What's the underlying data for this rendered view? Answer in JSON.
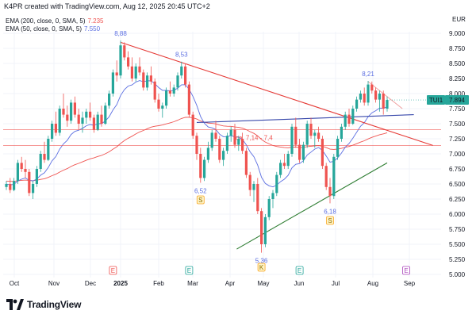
{
  "header": {
    "credit": "K4PR created with TradingView.com, Aug 12, 2025 20:45 UTC+2"
  },
  "indicators": [
    {
      "label": "EMA (200, close, 0, SMA, 5)",
      "value": "7.235",
      "color": "#ef5350"
    },
    {
      "label": "EMA (50, close, 0, SMA, 5)",
      "value": "7.550",
      "color": "#5b6ee1"
    }
  ],
  "footer": {
    "brand": "TradingView",
    "logo_icon": "tradingview-logo-icon"
  },
  "chart_data": {
    "type": "candlestick",
    "currency": "EUR",
    "symbol_tag": "TUI1",
    "last_price": "7.894",
    "ylim": [
      5.0,
      9.0
    ],
    "y_ticks": [
      "9.000",
      "8.750",
      "8.500",
      "8.250",
      "8.000",
      "7.750",
      "7.500",
      "7.250",
      "7.000",
      "6.750",
      "6.500",
      "6.250",
      "6.000",
      "5.750",
      "5.500",
      "5.250",
      "5.000"
    ],
    "x_ticks": [
      "Oct",
      "Nov",
      "Dec",
      "2025",
      "Feb",
      "Mar",
      "Apr",
      "May",
      "Jun",
      "Jul",
      "Aug",
      "Sep"
    ],
    "colors": {
      "up": "#26a69a",
      "down": "#ef5350",
      "ema200": "#ef5350",
      "ema50": "#5b6ee1",
      "resistance": "#e53935",
      "support": "#2e7d32",
      "trend": "#3949ab",
      "hline": "#ef5350",
      "price_tag": "#26a69a"
    },
    "candles": [
      [
        0,
        6.45,
        6.55,
        6.4,
        6.5
      ],
      [
        1,
        6.5,
        6.6,
        6.35,
        6.4
      ],
      [
        2,
        6.4,
        6.6,
        6.38,
        6.55
      ],
      [
        3,
        6.55,
        6.9,
        6.5,
        6.85
      ],
      [
        4,
        6.85,
        6.95,
        6.7,
        6.75
      ],
      [
        5,
        6.75,
        6.9,
        6.6,
        6.7
      ],
      [
        6,
        6.7,
        6.75,
        6.3,
        6.35
      ],
      [
        7,
        6.35,
        6.55,
        6.25,
        6.5
      ],
      [
        8,
        6.5,
        6.8,
        6.45,
        6.75
      ],
      [
        9,
        6.75,
        7.05,
        6.7,
        7.0
      ],
      [
        10,
        7.0,
        7.2,
        6.85,
        6.9
      ],
      [
        11,
        6.9,
        7.3,
        6.88,
        7.25
      ],
      [
        12,
        7.25,
        7.55,
        7.2,
        7.5
      ],
      [
        13,
        7.5,
        7.7,
        7.3,
        7.35
      ],
      [
        14,
        7.35,
        7.8,
        7.3,
        7.75
      ],
      [
        15,
        7.75,
        8.0,
        7.6,
        7.65
      ],
      [
        16,
        7.65,
        7.8,
        7.45,
        7.55
      ],
      [
        17,
        7.55,
        7.9,
        7.5,
        7.85
      ],
      [
        18,
        7.85,
        7.95,
        7.6,
        7.65
      ],
      [
        19,
        7.65,
        7.75,
        7.4,
        7.5
      ],
      [
        20,
        7.5,
        7.7,
        7.35,
        7.6
      ],
      [
        21,
        7.6,
        7.75,
        7.5,
        7.7
      ],
      [
        22,
        7.7,
        7.85,
        7.55,
        7.6
      ],
      [
        23,
        7.6,
        7.65,
        7.35,
        7.4
      ],
      [
        24,
        7.4,
        7.7,
        7.38,
        7.65
      ],
      [
        25,
        7.65,
        7.8,
        7.45,
        7.5
      ],
      [
        26,
        7.5,
        7.85,
        7.48,
        7.8
      ],
      [
        27,
        7.8,
        8.05,
        7.75,
        8.0
      ],
      [
        28,
        8.0,
        8.4,
        7.95,
        8.35
      ],
      [
        29,
        8.35,
        8.55,
        8.2,
        8.3
      ],
      [
        30,
        8.3,
        8.88,
        8.25,
        8.8
      ],
      [
        31,
        8.8,
        8.85,
        8.55,
        8.6
      ],
      [
        32,
        8.6,
        8.7,
        8.4,
        8.45
      ],
      [
        33,
        8.45,
        8.6,
        8.2,
        8.25
      ],
      [
        34,
        8.25,
        8.5,
        8.2,
        8.45
      ],
      [
        35,
        8.45,
        8.6,
        8.3,
        8.35
      ],
      [
        36,
        8.35,
        8.4,
        8.05,
        8.1
      ],
      [
        37,
        8.1,
        8.35,
        8.05,
        8.3
      ],
      [
        38,
        8.3,
        8.45,
        8.15,
        8.2
      ],
      [
        39,
        8.2,
        8.25,
        7.85,
        7.9
      ],
      [
        40,
        7.9,
        8.0,
        7.7,
        7.75
      ],
      [
        41,
        7.75,
        7.85,
        7.6,
        7.8
      ],
      [
        42,
        7.8,
        8.1,
        7.75,
        8.05
      ],
      [
        43,
        8.05,
        8.2,
        7.95,
        8.0
      ],
      [
        44,
        8.0,
        8.15,
        7.95,
        8.1
      ],
      [
        45,
        8.1,
        8.35,
        8.05,
        8.3
      ],
      [
        46,
        8.3,
        8.53,
        8.25,
        8.45
      ],
      [
        47,
        8.45,
        8.5,
        8.1,
        8.15
      ],
      [
        48,
        8.15,
        8.2,
        7.6,
        7.65
      ],
      [
        49,
        7.65,
        7.7,
        7.25,
        7.3
      ],
      [
        50,
        7.3,
        7.35,
        6.9,
        7.0
      ],
      [
        51,
        7.0,
        7.1,
        6.52,
        6.6
      ],
      [
        52,
        6.6,
        6.95,
        6.55,
        6.9
      ],
      [
        53,
        6.9,
        7.2,
        6.85,
        7.1
      ],
      [
        54,
        7.1,
        7.4,
        7.05,
        7.35
      ],
      [
        55,
        7.35,
        7.55,
        7.2,
        7.25
      ],
      [
        56,
        7.25,
        7.3,
        6.85,
        6.9
      ],
      [
        57,
        6.9,
        7.1,
        6.8,
        7.05
      ],
      [
        58,
        7.05,
        7.35,
        7.0,
        7.3
      ],
      [
        59,
        7.3,
        7.45,
        7.2,
        7.4
      ],
      [
        60,
        7.4,
        7.5,
        7.1,
        7.15
      ],
      [
        61,
        7.15,
        7.3,
        7.05,
        7.25
      ],
      [
        62,
        7.25,
        7.35,
        7.0,
        7.05
      ],
      [
        63,
        7.05,
        7.1,
        6.6,
        6.65
      ],
      [
        64,
        6.65,
        6.7,
        6.3,
        6.4
      ],
      [
        65,
        6.4,
        6.55,
        6.2,
        6.5
      ],
      [
        66,
        6.5,
        6.6,
        6.0,
        6.05
      ],
      [
        67,
        6.05,
        6.1,
        5.36,
        5.5
      ],
      [
        68,
        5.5,
        6.0,
        5.45,
        5.95
      ],
      [
        69,
        5.95,
        6.3,
        5.9,
        6.25
      ],
      [
        70,
        6.25,
        6.4,
        6.1,
        6.35
      ],
      [
        71,
        6.35,
        6.7,
        6.3,
        6.65
      ],
      [
        72,
        6.65,
        6.9,
        6.6,
        6.85
      ],
      [
        73,
        6.85,
        7.0,
        6.75,
        6.8
      ],
      [
        74,
        6.8,
        7.05,
        6.75,
        7.0
      ],
      [
        75,
        7.0,
        7.5,
        6.95,
        7.45
      ],
      [
        76,
        7.45,
        7.6,
        7.1,
        7.15
      ],
      [
        77,
        7.15,
        7.25,
        6.85,
        6.9
      ],
      [
        78,
        6.9,
        7.2,
        6.85,
        7.15
      ],
      [
        79,
        7.15,
        7.55,
        7.1,
        7.5
      ],
      [
        80,
        7.5,
        7.6,
        7.25,
        7.3
      ],
      [
        81,
        7.3,
        7.4,
        7.1,
        7.35
      ],
      [
        82,
        7.35,
        7.45,
        7.2,
        7.25
      ],
      [
        83,
        7.25,
        7.3,
        6.75,
        6.8
      ],
      [
        84,
        6.8,
        6.85,
        6.4,
        6.45
      ],
      [
        85,
        6.45,
        6.6,
        6.18,
        6.3
      ],
      [
        86,
        6.3,
        7.0,
        6.25,
        6.95
      ],
      [
        87,
        6.95,
        7.3,
        6.9,
        7.25
      ],
      [
        88,
        7.25,
        7.5,
        7.2,
        7.45
      ],
      [
        89,
        7.45,
        7.7,
        7.4,
        7.65
      ],
      [
        90,
        7.65,
        7.75,
        7.45,
        7.5
      ],
      [
        91,
        7.5,
        7.8,
        7.48,
        7.75
      ],
      [
        92,
        7.75,
        7.95,
        7.7,
        7.9
      ],
      [
        93,
        7.9,
        8.05,
        7.85,
        8.0
      ],
      [
        94,
        8.0,
        8.1,
        7.8,
        7.85
      ],
      [
        95,
        7.85,
        8.21,
        7.8,
        8.15
      ],
      [
        96,
        8.15,
        8.2,
        8.0,
        8.05
      ],
      [
        97,
        8.05,
        8.1,
        7.85,
        7.9
      ],
      [
        98,
        7.9,
        8.05,
        7.7,
        8.0
      ],
      [
        99,
        8.0,
        8.05,
        7.65,
        7.75
      ],
      [
        100,
        7.75,
        7.95,
        7.7,
        7.894
      ]
    ],
    "labels": [
      {
        "text": "8,88",
        "idx": 30,
        "price": 8.88,
        "pos": "above"
      },
      {
        "text": "8,53",
        "idx": 46,
        "price": 8.53,
        "pos": "above"
      },
      {
        "text": "6,52",
        "idx": 51,
        "price": 6.52,
        "pos": "below"
      },
      {
        "text": "5,36",
        "idx": 67,
        "price": 5.36,
        "pos": "below"
      },
      {
        "text": "6,18",
        "idx": 85,
        "price": 6.18,
        "pos": "below"
      },
      {
        "text": "8,21",
        "idx": 95,
        "price": 8.21,
        "pos": "above"
      }
    ],
    "zone_label": "ca. 7,14 - 7,4",
    "horizontal_levels": [
      7.4,
      7.14
    ],
    "events": [
      {
        "code": "E",
        "idx": 28,
        "color": "#ef5350"
      },
      {
        "code": "E",
        "idx": 48,
        "color": "#26a69a"
      },
      {
        "code": "S",
        "idx": 51,
        "color": "#f9a825"
      },
      {
        "code": "K",
        "idx": 67,
        "color": "#f9a825"
      },
      {
        "code": "E",
        "idx": 77,
        "color": "#26a69a"
      },
      {
        "code": "S",
        "idx": 85,
        "color": "#f9a825"
      },
      {
        "code": "E",
        "idx": 105,
        "color": "#ab47bc"
      }
    ]
  }
}
